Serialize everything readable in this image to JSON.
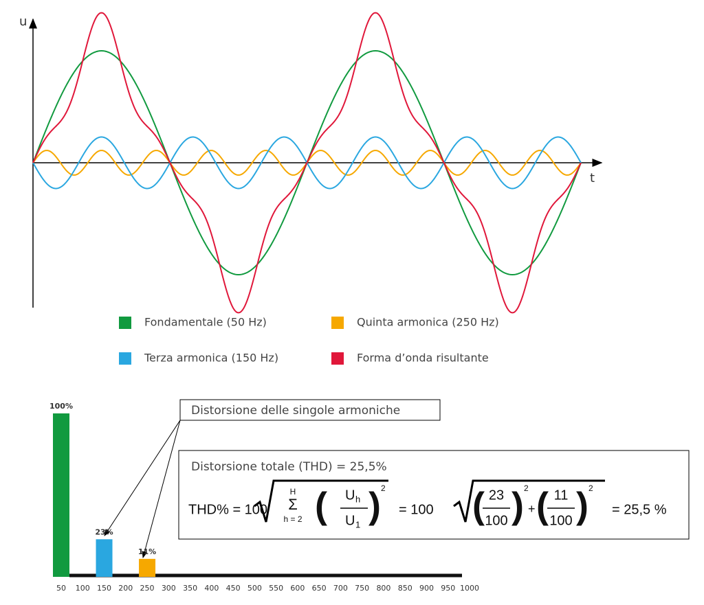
{
  "chart_data": [
    {
      "type": "line",
      "y_label": "u",
      "x_label": "t",
      "series": [
        {
          "name": "Fondamentale (50 Hz)",
          "color": "#119a3f"
        },
        {
          "name": "Terza armonica (150 Hz)",
          "color": "#2aa7e0"
        },
        {
          "name": "Quinta armonica (250 Hz)",
          "color": "#f6a800"
        },
        {
          "name": "Forma d’onda risultante",
          "color": "#e0173a"
        }
      ]
    },
    {
      "type": "bar",
      "categories": [
        "50",
        "100",
        "150",
        "200",
        "250",
        "300",
        "350",
        "400",
        "450",
        "500",
        "550",
        "600",
        "650",
        "700",
        "750",
        "800",
        "850",
        "900",
        "950",
        "1000"
      ],
      "values": [
        100,
        0,
        23,
        0,
        11,
        0,
        0,
        0,
        0,
        0,
        0,
        0,
        0,
        0,
        0,
        0,
        0,
        0,
        0,
        0
      ],
      "value_labels": [
        "100%",
        null,
        "23%",
        null,
        "11%",
        null,
        null,
        null,
        null,
        null,
        null,
        null,
        null,
        null,
        null,
        null,
        null,
        null,
        null,
        null
      ],
      "colors": [
        "#119a3f",
        "#111111",
        "#2aa7e0",
        "#111111",
        "#f6a800",
        "#111111",
        "#111111",
        "#111111",
        "#111111",
        "#111111",
        "#111111",
        "#111111",
        "#111111",
        "#111111",
        "#111111",
        "#111111",
        "#111111",
        "#111111",
        "#111111",
        "#111111"
      ],
      "ylim": [
        0,
        100
      ]
    }
  ],
  "annotation": "Distorsione delle singole armoniche",
  "thd": {
    "title": "Distorsione totale (THD) = 25,5%",
    "lhs": "THD% = 100",
    "sum_top": "H",
    "sigma": "Σ",
    "sum_bottom": "h = 2",
    "num": "U",
    "num_sub": "h",
    "den": "U",
    "den_sub": "1",
    "exp": "2",
    "mid": "= 100",
    "n1": "23",
    "d1": "100",
    "n2": "11",
    "d2": "100",
    "plus": "+",
    "result": "= 25,5 %"
  }
}
